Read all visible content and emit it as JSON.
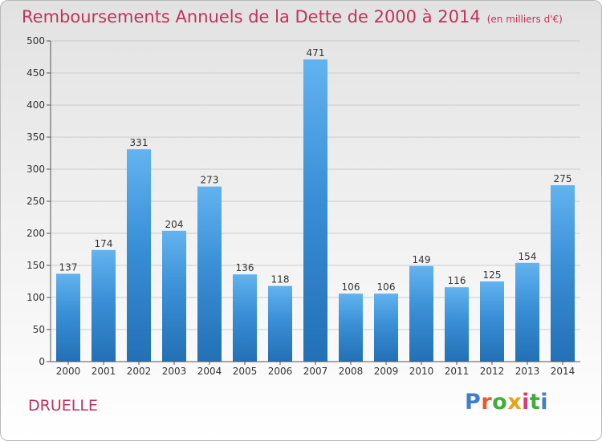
{
  "chart_data": {
    "type": "bar",
    "title": "Remboursements Annuels de la Dette de 2000 à 2014",
    "subtitle": "(en milliers d'€)",
    "xlabel": "",
    "ylabel": "",
    "categories": [
      "2000",
      "2001",
      "2002",
      "2003",
      "2004",
      "2005",
      "2006",
      "2007",
      "2008",
      "2009",
      "2010",
      "2011",
      "2012",
      "2013",
      "2014"
    ],
    "values": [
      137,
      174,
      331,
      204,
      273,
      136,
      118,
      471,
      106,
      106,
      149,
      116,
      125,
      154,
      275
    ],
    "ylim": [
      0,
      500
    ],
    "yticks": [
      0,
      50,
      100,
      150,
      200,
      250,
      300,
      350,
      400,
      450,
      500
    ],
    "grid": true,
    "legend": "none",
    "bar_color": "#3a8fd6",
    "bar_color_light": "#62b3ef",
    "bar_color_dark": "#2370b5"
  },
  "footer": {
    "commune": "DRUELLE",
    "logo_text": "Proxiti",
    "logo_colors": [
      "#3a7fd0",
      "#e85a2a",
      "#3fae3a",
      "#e8a21a",
      "#d63f7a",
      "#3fae3a",
      "#3a7fd0"
    ]
  },
  "colors": {
    "title": "#c1325f",
    "grid": "#cccccc",
    "axis": "#555555"
  }
}
